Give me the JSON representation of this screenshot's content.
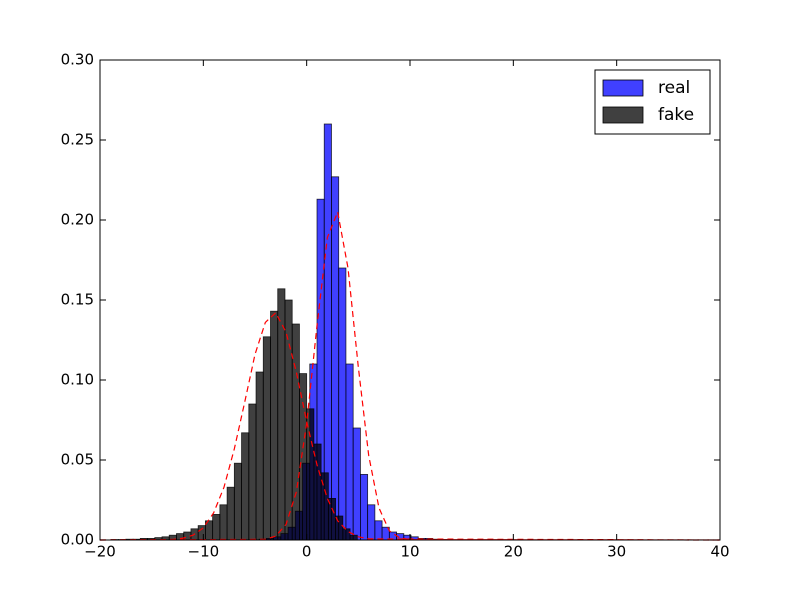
{
  "chart_data": {
    "type": "histogram",
    "xlim": [
      -20,
      40
    ],
    "ylim": [
      0,
      0.3
    ],
    "xticks": [
      {
        "value": -20,
        "label": "−20"
      },
      {
        "value": -10,
        "label": "−10"
      },
      0,
      10,
      20,
      30,
      40
    ],
    "yticks": [
      {
        "value": 0,
        "label": "0.00"
      },
      {
        "value": 0.05,
        "label": "0.05"
      },
      {
        "value": 0.1,
        "label": "0.10"
      },
      {
        "value": 0.15,
        "label": "0.15"
      },
      {
        "value": 0.2,
        "label": "0.20"
      },
      {
        "value": 0.25,
        "label": "0.25"
      },
      {
        "value": 0.3,
        "label": "0.30"
      }
    ],
    "legend": "upper right",
    "alpha": 0.75,
    "series": [
      {
        "name": "real",
        "color": "#0000ff",
        "bins": [
          -4.6,
          -3.9,
          -3.2,
          -2.5,
          -1.8,
          -1.1,
          -0.4,
          0.3,
          1.0,
          1.7,
          2.4,
          3.1,
          3.8,
          4.5,
          5.2,
          5.9,
          6.6,
          7.3,
          8.0,
          8.7,
          9.4,
          10.1,
          10.8,
          11.5,
          12.2,
          12.9,
          13.6
        ],
        "values": [
          0.0005,
          0.001,
          0.002,
          0.004,
          0.008,
          0.018,
          0.048,
          0.11,
          0.213,
          0.26,
          0.227,
          0.17,
          0.11,
          0.07,
          0.041,
          0.022,
          0.012,
          0.008,
          0.005,
          0.004,
          0.003,
          0.002,
          0.001,
          0.001,
          0.0005,
          0.0003
        ]
      },
      {
        "name": "fake",
        "color": "#000000",
        "bins": [
          -18.9,
          -18.2,
          -17.5,
          -16.8,
          -16.1,
          -15.4,
          -14.7,
          -14.0,
          -13.3,
          -12.6,
          -11.9,
          -11.2,
          -10.5,
          -9.8,
          -9.1,
          -8.4,
          -7.7,
          -7.0,
          -6.3,
          -5.6,
          -4.9,
          -4.2,
          -3.5,
          -2.8,
          -2.1,
          -1.4,
          -0.7,
          0.0,
          0.7,
          1.4,
          2.1,
          2.8,
          3.5,
          4.2,
          4.9
        ],
        "values": [
          0.0003,
          0.0003,
          0.0005,
          0.0005,
          0.001,
          0.001,
          0.0015,
          0.002,
          0.003,
          0.004,
          0.005,
          0.007,
          0.009,
          0.012,
          0.016,
          0.022,
          0.033,
          0.048,
          0.067,
          0.085,
          0.105,
          0.127,
          0.143,
          0.157,
          0.15,
          0.135,
          0.104,
          0.082,
          0.06,
          0.042,
          0.026,
          0.015,
          0.007,
          0.003
        ]
      }
    ],
    "lines": [
      {
        "color": "#ff0000",
        "x": [
          -20,
          -4,
          -3,
          -2,
          -1,
          0,
          1,
          2,
          3,
          4,
          5,
          6,
          7,
          8,
          9,
          10,
          40
        ],
        "y": [
          0,
          0.0004,
          0.0024,
          0.0097,
          0.03,
          0.073,
          0.134,
          0.189,
          0.205,
          0.17,
          0.108,
          0.053,
          0.02,
          0.0057,
          0.0013,
          0.0002,
          0
        ]
      },
      {
        "color": "#ff0000",
        "x": [
          -20,
          -13,
          -12,
          -11,
          -10,
          -9,
          -8,
          -7,
          -6,
          -5,
          -4,
          -3,
          -2,
          -1,
          0,
          1,
          2,
          3,
          4,
          5,
          6,
          40
        ],
        "y": [
          0,
          0.0003,
          0.0011,
          0.003,
          0.0076,
          0.017,
          0.033,
          0.057,
          0.086,
          0.116,
          0.136,
          0.142,
          0.13,
          0.105,
          0.074,
          0.047,
          0.026,
          0.012,
          0.0053,
          0.002,
          0.0007,
          0
        ]
      }
    ]
  }
}
